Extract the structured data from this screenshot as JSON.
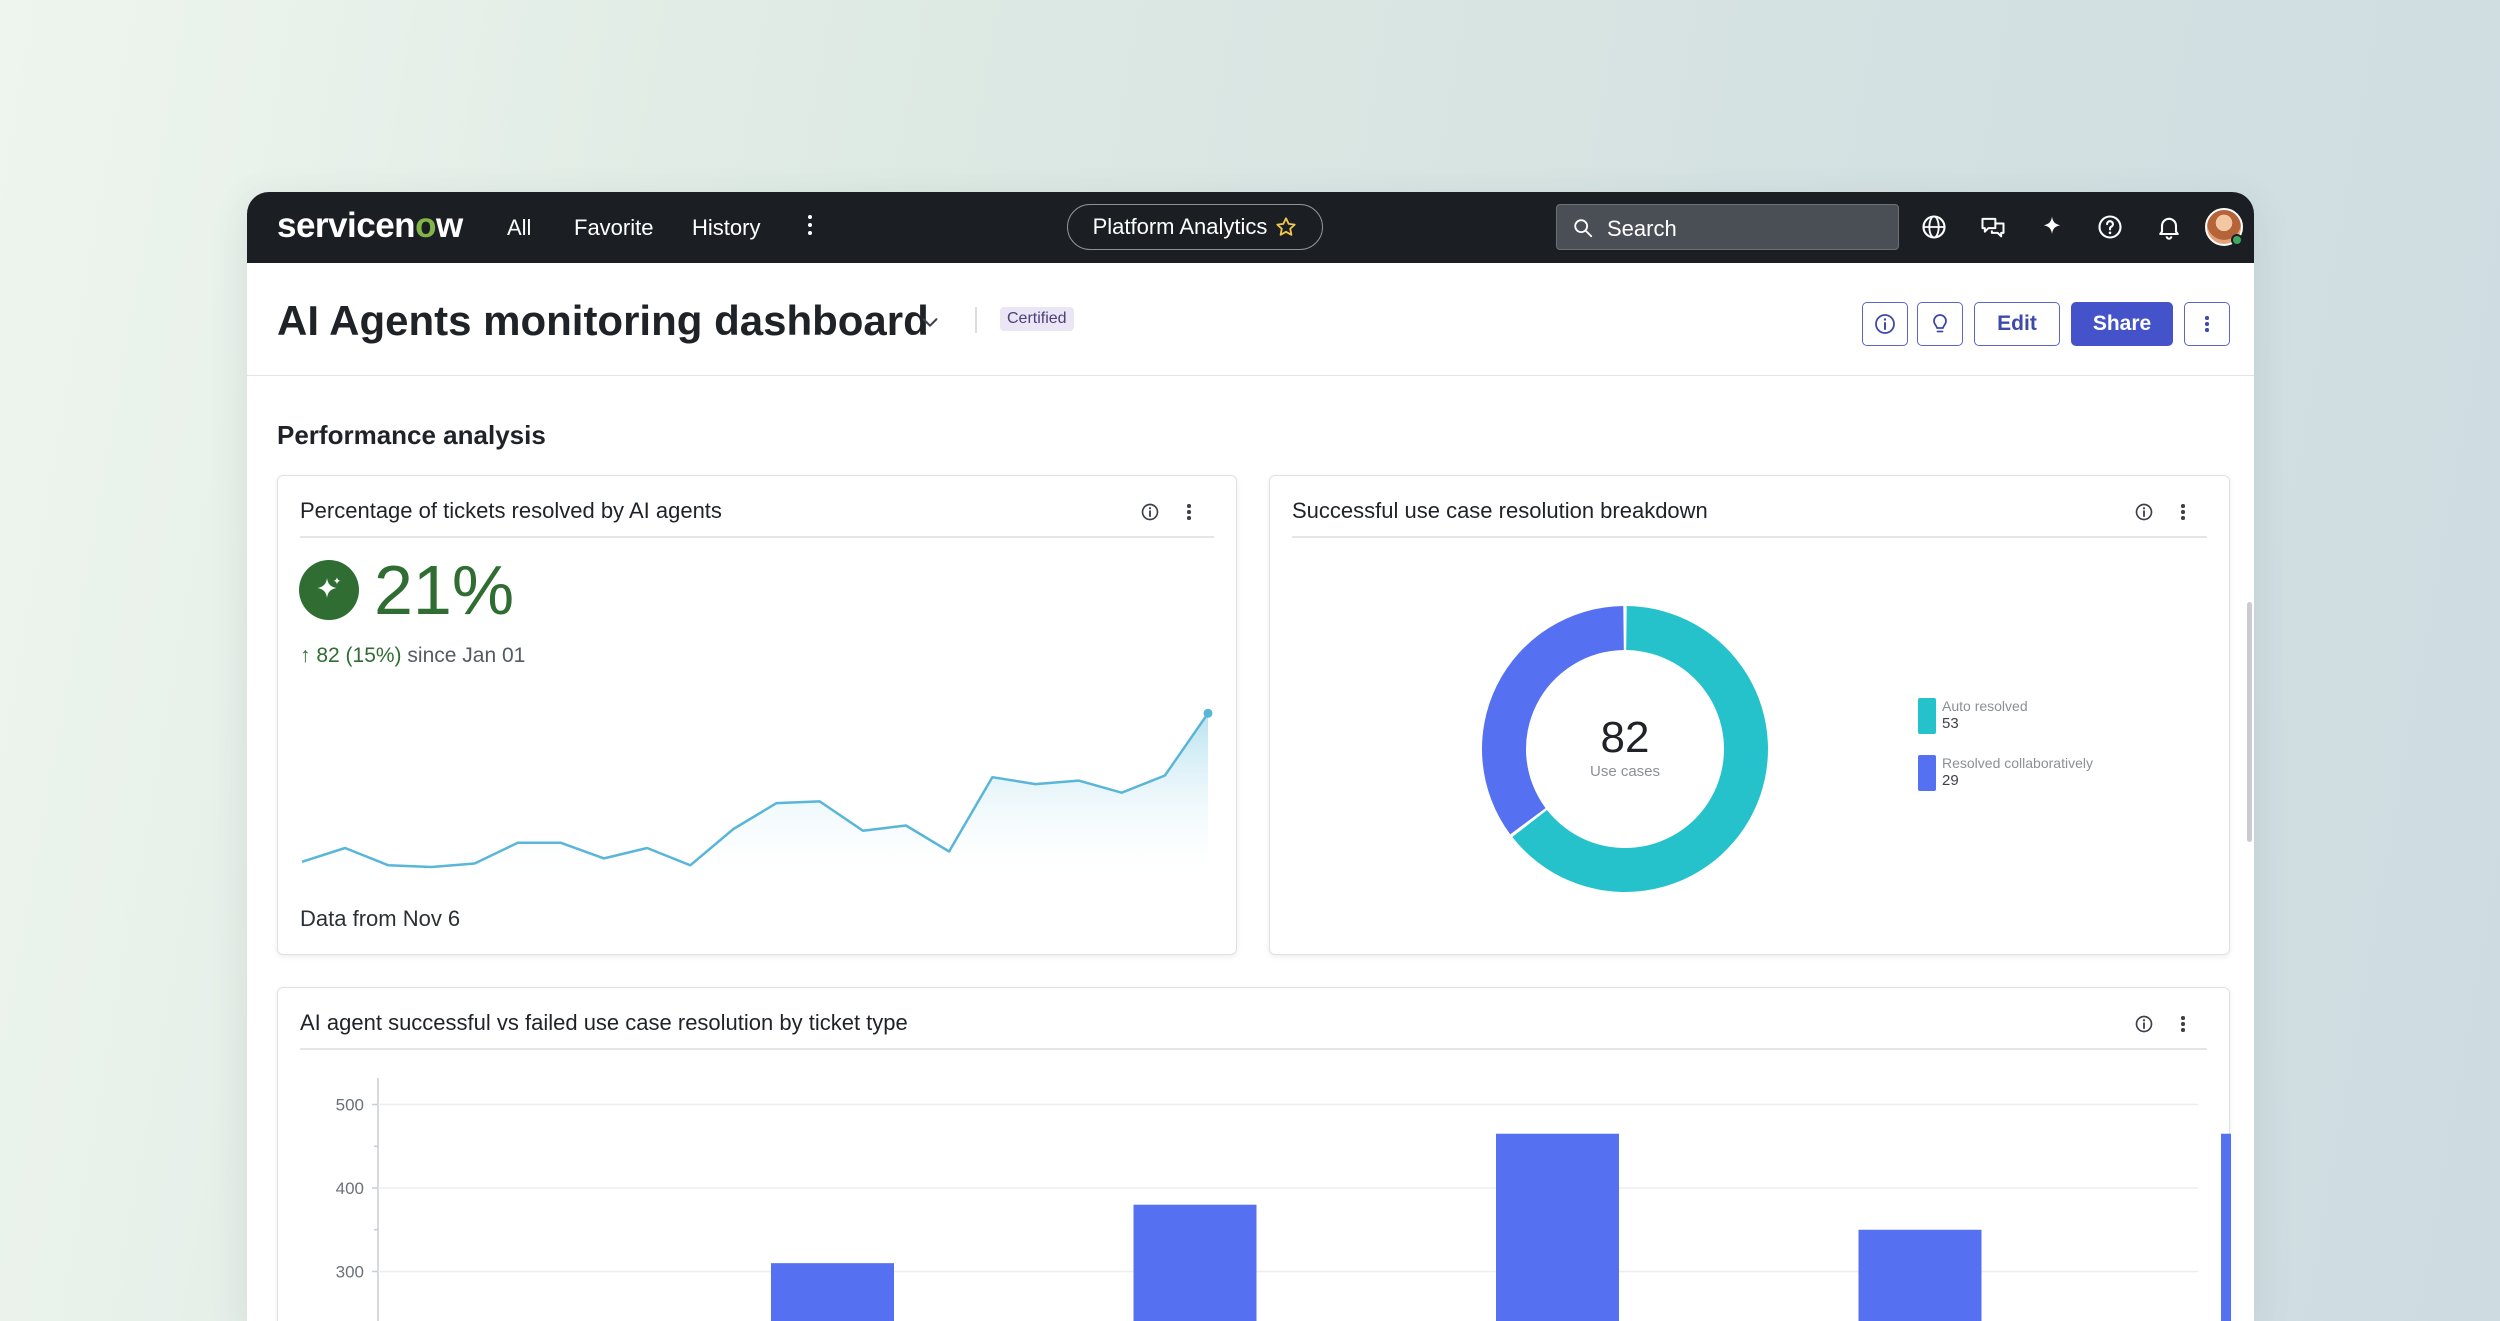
{
  "topnav": {
    "logo_text_a": "servicen",
    "logo_text_o": "o",
    "logo_text_b": "w",
    "links": [
      "All",
      "Favorite",
      "History"
    ],
    "app_pill": "Platform Analytics",
    "search_placeholder": "Search",
    "icons": [
      "globe-icon",
      "chat-icon",
      "sparkle-icon",
      "help-icon",
      "bell-icon",
      "user-avatar"
    ]
  },
  "page": {
    "title": "AI Agents monitoring dashboard",
    "badge": "Certified",
    "buttons": {
      "edit": "Edit",
      "share": "Share"
    }
  },
  "section": {
    "title": "Performance analysis"
  },
  "kpi_card": {
    "title": "Percentage of tickets resolved by AI agents",
    "value": "21%",
    "delta": "82 (15%)",
    "since": "since Jan 01",
    "footer": "Data from Nov 6"
  },
  "donut_card": {
    "title": "Successful use case resolution breakdown",
    "center_value": "82",
    "center_label": "Use cases"
  },
  "bar_card": {
    "title": "AI agent successful vs failed use case resolution by ticket type"
  },
  "colors": {
    "nav_bg": "#1b1f24",
    "accent": "#4453c9",
    "kpi_green": "#2f6d32",
    "teal": "#26c2cb",
    "blue": "#5570f1",
    "sparkline": "#5ab6d8"
  },
  "chart_data": [
    {
      "type": "area",
      "series": [
        {
          "values": [
            14,
            22,
            12,
            11,
            13,
            25,
            25,
            16,
            22,
            12,
            33,
            48,
            49,
            32,
            35,
            20,
            63,
            59,
            61,
            54,
            64,
            100
          ]
        }
      ],
      "ylim": [
        0,
        110
      ],
      "grid": false
    },
    {
      "type": "pie",
      "labels": [
        "Auto resolved",
        "Resolved collaboratively"
      ],
      "values": [
        53,
        29
      ],
      "colors": [
        "#26c2cb",
        "#5570f1"
      ],
      "legend": "right"
    },
    {
      "type": "bar",
      "categories": [
        "",
        "",
        "",
        "",
        ""
      ],
      "values": [
        310,
        380,
        465,
        350,
        465
      ],
      "yticks": [
        "500",
        "400",
        "300"
      ],
      "ylim": [
        0,
        500
      ],
      "grid": true
    }
  ]
}
